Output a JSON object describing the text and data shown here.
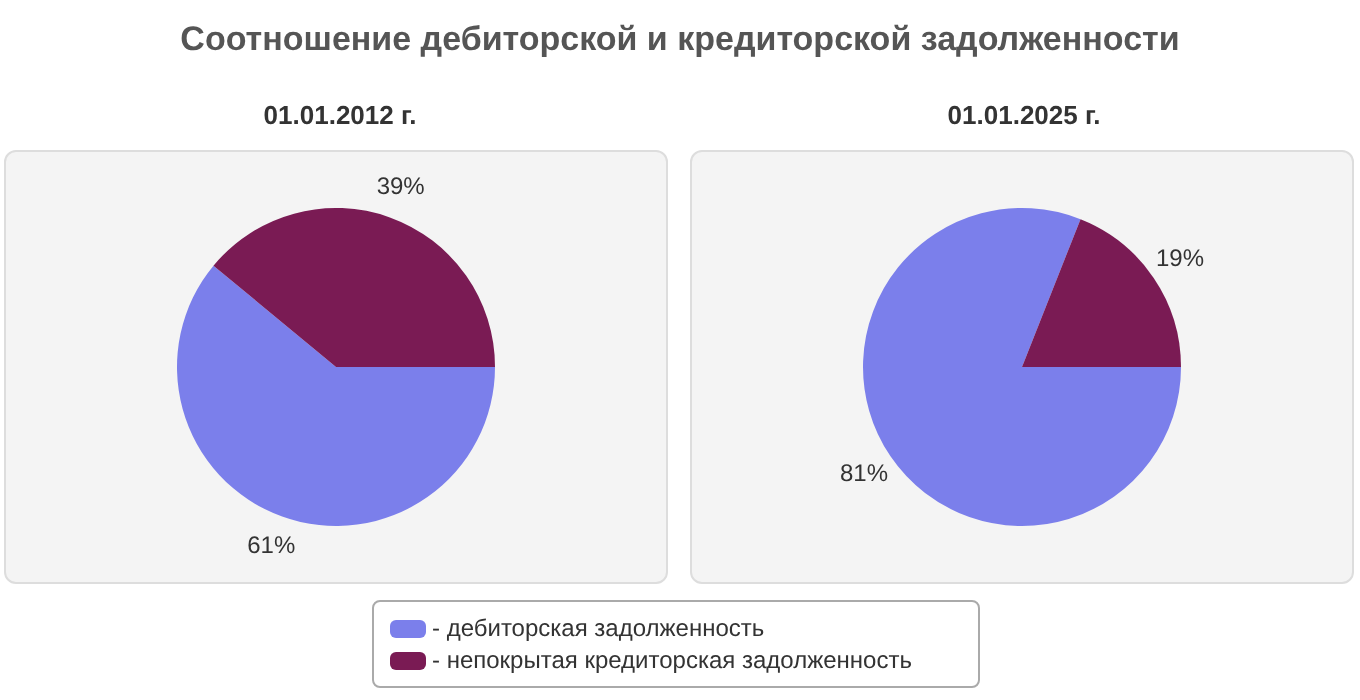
{
  "chart_data": [
    {
      "type": "pie",
      "title": "Соотношение дебиторской и кредиторской задолженности",
      "subtitle": "01.01.2012 г.",
      "categories": [
        "- дебиторская задолженность",
        "- непокрытая кредиторская задолженность"
      ],
      "values": [
        61,
        39
      ],
      "colors": [
        "#7b7feb",
        "#7a1b54"
      ],
      "value_labels": [
        "61%",
        "39%"
      ],
      "legend": "bottom"
    },
    {
      "type": "pie",
      "title": "01.01.2025 г.",
      "categories": [
        null,
        null
      ],
      "values": [
        81,
        19
      ],
      "colors": [
        "#7b7feb",
        "#7a1b54"
      ],
      "value_labels": [
        "81%",
        "19%"
      ]
    }
  ]
}
